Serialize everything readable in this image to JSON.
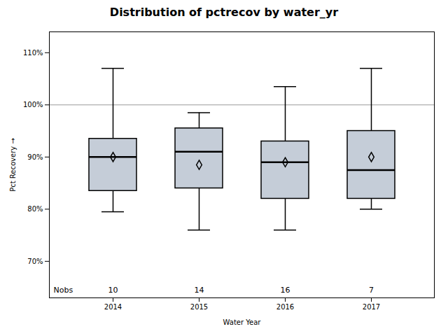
{
  "chart_data": {
    "type": "box",
    "title": "Distribution of pctrecov by water_yr",
    "xlabel": "Water Year",
    "ylabel": "Pct Recovery",
    "categories": [
      "2014",
      "2015",
      "2016",
      "2017"
    ],
    "boxes": [
      {
        "q1": 83.5,
        "median": 90.0,
        "q3": 93.5,
        "mean": 90.0,
        "whislo": 79.5,
        "whishi": 107.0
      },
      {
        "q1": 84.0,
        "median": 91.0,
        "q3": 95.5,
        "mean": 88.5,
        "whislo": 76.0,
        "whishi": 98.5
      },
      {
        "q1": 82.0,
        "median": 89.0,
        "q3": 93.0,
        "mean": 89.0,
        "whislo": 76.0,
        "whishi": 103.5
      },
      {
        "q1": 82.0,
        "median": 87.5,
        "q3": 95.0,
        "mean": 90.0,
        "whislo": 80.0,
        "whishi": 107.0
      }
    ],
    "counts_label": "Nobs",
    "counts": [
      10,
      14,
      16,
      7
    ],
    "reference_line": 100,
    "color": "#c5cdd8",
    "ylim": [
      63,
      114
    ],
    "yticks": [
      {
        "value": 70,
        "label": "70%"
      },
      {
        "value": 80,
        "label": "80%"
      },
      {
        "value": 90,
        "label": "90%"
      },
      {
        "value": 100,
        "label": "100%"
      },
      {
        "value": 110,
        "label": "110%"
      }
    ],
    "grid": false
  }
}
